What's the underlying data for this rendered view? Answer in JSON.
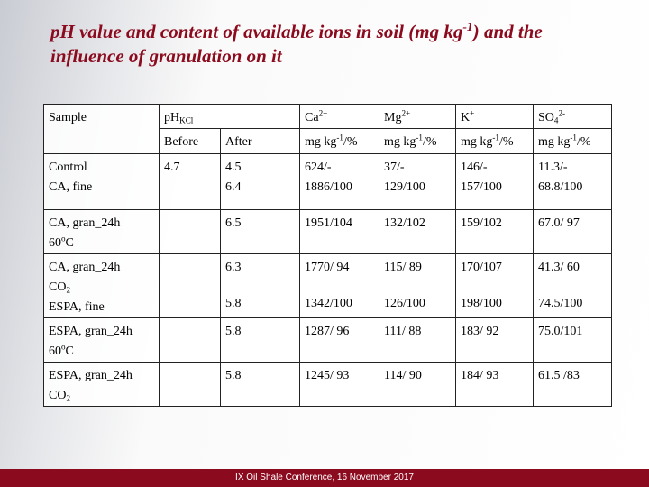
{
  "title": [
    [
      "pH value and content of available ions in soil (mg kg",
      {
        "sup": "-1"
      },
      ") and the"
    ],
    "influence of granulation on it"
  ],
  "table": {
    "header": [
      [
        "Sample",
        [
          "pH",
          {
            "sub": "KCl"
          }
        ],
        [
          "Ca",
          {
            "sup": "2+"
          }
        ],
        [
          "Mg",
          {
            "sup": "2+"
          }
        ],
        [
          "K",
          {
            "sup": "+"
          }
        ],
        [
          "SO",
          {
            "sub": "4"
          },
          {
            "sup": "2-"
          }
        ]
      ],
      [
        "Before",
        "After",
        [
          "mg kg",
          {
            "sup": "-1"
          },
          "/%"
        ],
        [
          "mg kg",
          {
            "sup": "-1"
          },
          "/%"
        ],
        [
          "mg kg",
          {
            "sup": "-1"
          },
          "/%"
        ],
        [
          "mg kg",
          {
            "sup": "-1"
          },
          "/%"
        ]
      ]
    ],
    "rows": [
      [
        [
          "Control",
          "CA, fine"
        ],
        [
          "4.7"
        ],
        [
          "4.5",
          "6.4"
        ],
        [
          "624/-",
          "1886/100"
        ],
        [
          "37/-",
          "129/100"
        ],
        [
          "146/-",
          "157/100"
        ],
        [
          "11.3/-",
          "68.8/100"
        ]
      ],
      [
        [
          "CA, gran_24h",
          [
            "60",
            {
              "sup": "o"
            },
            "C"
          ]
        ],
        [],
        [
          "6.5"
        ],
        [
          "1951/104"
        ],
        [
          "132/102"
        ],
        [
          "159/102"
        ],
        [
          "67.0/ 97"
        ]
      ],
      [
        [
          "CA, gran_24h",
          [
            "CO",
            {
              "sub": "2"
            }
          ],
          "ESPA, fine"
        ],
        [],
        [
          "6.3",
          "5.8"
        ],
        [
          "1770/ 94",
          "1342/100"
        ],
        [
          "115/ 89",
          "126/100"
        ],
        [
          "170/107",
          "198/100"
        ],
        [
          "41.3/ 60",
          "74.5/100"
        ]
      ],
      [
        [
          "ESPA, gran_24h",
          [
            "60",
            {
              "sup": "o"
            },
            "C"
          ]
        ],
        [],
        [
          "5.8"
        ],
        [
          "1287/ 96"
        ],
        [
          "111/ 88"
        ],
        [
          "183/ 92"
        ],
        [
          "75.0/101"
        ]
      ],
      [
        [
          "ESPA, gran_24h",
          [
            "CO",
            {
              "sub": "2"
            }
          ]
        ],
        [],
        [
          "5.8"
        ],
        [
          "1245/ 93"
        ],
        [
          "114/ 90"
        ],
        [
          "184/ 93"
        ],
        [
          "61.5 /83"
        ]
      ]
    ]
  },
  "footer": "IX Oil Shale Conference, 16 November 2017"
}
